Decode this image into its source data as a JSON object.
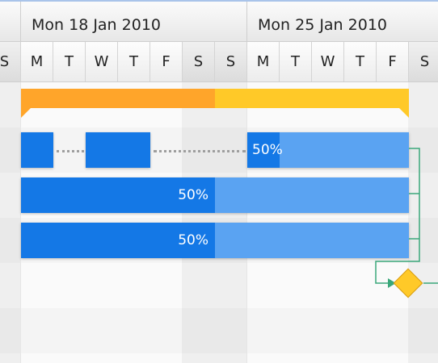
{
  "header": {
    "weeks": [
      {
        "label": ""
      },
      {
        "label": "Mon 18 Jan 2010"
      },
      {
        "label": "Mon 25 Jan 2010"
      }
    ],
    "days": [
      "S",
      "M",
      "T",
      "W",
      "T",
      "F",
      "S",
      "S",
      "M",
      "T",
      "W",
      "T",
      "F",
      "S"
    ]
  },
  "tasks": {
    "summary": {
      "percent_done": 50
    },
    "task1": {
      "label": "50%",
      "percent_done": 50
    },
    "task2": {
      "label": "50%",
      "percent_done": 50
    },
    "task3": {
      "label": "50%",
      "percent_done": 50
    }
  },
  "colors": {
    "task": "#5aa3f2",
    "task_done": "#1478e6",
    "summary": "#ffc928",
    "summary_done": "#ffa52a",
    "milestone": "#ffc928",
    "dependency_line": "#3aa77a"
  },
  "icons": {
    "milestone": "milestone-diamond-icon"
  }
}
